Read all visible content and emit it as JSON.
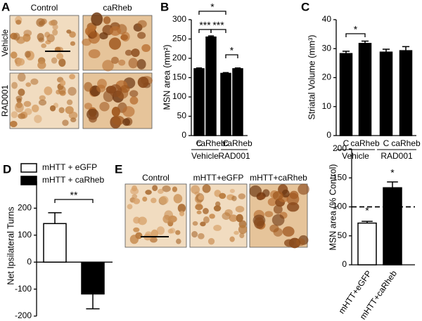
{
  "image_panels": [
    {
      "panel": "A",
      "columns": [
        "Control",
        "caRheb"
      ],
      "rows": [
        "Vehicle",
        "RAD001"
      ]
    },
    {
      "panel": "E",
      "columns": [
        "Control",
        "mHTT+eGFP",
        "mHTT+caRheb"
      ]
    }
  ],
  "chart_data": [
    {
      "panel": "B",
      "type": "bar",
      "ylabel": "MSN area (mm²)",
      "categories": [
        "C",
        "caRheb",
        "C",
        "caRheb"
      ],
      "groups": [
        "Vehicle",
        "RAD001"
      ],
      "values": [
        173,
        255,
        161,
        173
      ],
      "errors": [
        2,
        3,
        2,
        2
      ],
      "color": "#000000",
      "ylim": [
        0,
        300
      ],
      "yticks": [
        0,
        50,
        100,
        150,
        200,
        250,
        300
      ],
      "annotations": [
        "*",
        "***",
        "***",
        "*"
      ]
    },
    {
      "panel": "C",
      "type": "bar",
      "ylabel": "Striatal Volume (mm³)",
      "categories": [
        "C",
        "caRheb",
        "C",
        "caRheb"
      ],
      "groups": [
        "Vehicle",
        "RAD001"
      ],
      "values": [
        28.3,
        31.8,
        28.8,
        29.3
      ],
      "errors": [
        0.8,
        0.8,
        1.0,
        1.4
      ],
      "color": "#000000",
      "ylim": [
        0,
        40
      ],
      "yticks": [
        0,
        10,
        20,
        30,
        40
      ],
      "annotations": [
        "*"
      ]
    },
    {
      "panel": "D",
      "type": "bar",
      "ylabel": "Net Ipsilateral Turns",
      "series": [
        {
          "name": "mHTT + eGFP",
          "color": "#ffffff",
          "values": [
            143
          ],
          "errors": [
            40
          ]
        },
        {
          "name": "mHTT + caRheb",
          "color": "#000000",
          "values": [
            -118
          ],
          "errors": [
            55
          ]
        }
      ],
      "ylim": [
        -200,
        300
      ],
      "yticks": [
        -200,
        -100,
        0,
        100,
        200
      ],
      "annotations": [
        "**"
      ]
    },
    {
      "type": "bar",
      "ylabel": "MSN area (% Control)",
      "categories": [
        "mHTT+eGFP",
        "mHTT+caRheb"
      ],
      "values": [
        72,
        133
      ],
      "errors": [
        3,
        10
      ],
      "colors": [
        "#ffffff",
        "#000000"
      ],
      "reference_line": 100,
      "ylim": [
        0,
        200
      ],
      "yticks": [
        0,
        50,
        100,
        150,
        200
      ],
      "annotations": [
        "*",
        "*"
      ]
    }
  ]
}
